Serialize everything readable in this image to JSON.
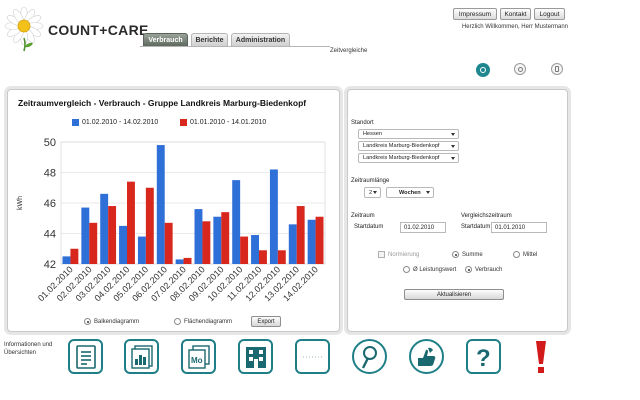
{
  "app": {
    "logo_text": "COUNT+CARE",
    "nav_tabs": [
      {
        "label": "Verbrauch",
        "active": true
      },
      {
        "label": "Berichte",
        "active": false
      },
      {
        "label": "Administration",
        "active": false
      }
    ],
    "top_buttons": [
      "Impressum",
      "Kontakt",
      "Logout"
    ],
    "welcome": "Herzlich Willkommen, Herr Mustermann",
    "section_title": "Zeitvergleiche"
  },
  "chart_panel": {
    "title": "Zeitraumvergleich - Verbrauch - Gruppe Landkreis Marburg-Biedenkopf",
    "chart_type_options": {
      "bar": "Balkendiagramm",
      "area": "Flächendiagramm",
      "selected": "bar"
    },
    "export_label": "Export"
  },
  "chart_data": {
    "type": "bar",
    "title": "Zeitraumvergleich - Verbrauch - Gruppe Landkreis Marburg-Biedenkopf",
    "ylabel": "kWh",
    "ylim": [
      42,
      50
    ],
    "yticks": [
      42,
      44,
      46,
      48,
      50
    ],
    "legend_position": "top",
    "categories": [
      "01.02.2010",
      "02.02.2010",
      "03.02.2010",
      "04.02.2010",
      "05.02.2010",
      "06.02.2010",
      "07.02.2010",
      "08.02.2010",
      "09.02.2010",
      "10.02.2010",
      "11.02.2010",
      "12.02.2010",
      "13.02.2010",
      "14.02.2010"
    ],
    "series": [
      {
        "name": "01.02.2010 - 14.02.2010",
        "color": "#2f6fd8",
        "values": [
          42.5,
          45.7,
          46.6,
          44.5,
          43.8,
          49.8,
          42.3,
          45.6,
          45.1,
          47.5,
          43.9,
          48.2,
          44.6,
          44.9
        ]
      },
      {
        "name": "01.01.2010 - 14.01.2010",
        "color": "#d8281e",
        "values": [
          43.0,
          44.7,
          45.8,
          47.4,
          47.0,
          44.7,
          42.4,
          44.8,
          45.4,
          43.8,
          42.9,
          42.9,
          45.8,
          45.1
        ]
      }
    ],
    "grid": true
  },
  "form": {
    "standort_label": "Standort",
    "standort_selects": [
      "Hessen",
      "Landkreis Marburg-Biedenkopf",
      "Landkreis Marburg-Biedenkopf"
    ],
    "zeitraumlaenge_label": "Zeitraumlänge",
    "zeitraum_value": "2",
    "zeitraum_unit": "Wochen",
    "zeitraum_label": "Zeitraum",
    "startdatum_label": "Startdatum",
    "startdatum_value": "01.02.2010",
    "vergleich_label": "Vergleichszeitraum",
    "vergleich_start_label": "Startdatum",
    "vergleich_start_value": "01.01.2010",
    "normierung_label": "Normierung",
    "summe_label": "Summe",
    "mittel_label": "Mittel",
    "leistungswert_label": "Ø Leistungswert",
    "verbrauch_label": "Verbrauch",
    "aktualisieren_label": "Aktualisieren"
  },
  "bottom": {
    "info_label": "Informationen und Übersichten",
    "icons": [
      "document-icon",
      "chart-report-icon",
      "mo-calendar-icon",
      "building-icon",
      "blank-panel-icon",
      "map-pin-icon",
      "thumbs-icon",
      "help-icon",
      "alert-icon"
    ]
  },
  "colors": {
    "accent": "#1f7f86",
    "bar_blue": "#2f6fd8",
    "bar_red": "#d8281e",
    "alert": "#d21a1a"
  }
}
